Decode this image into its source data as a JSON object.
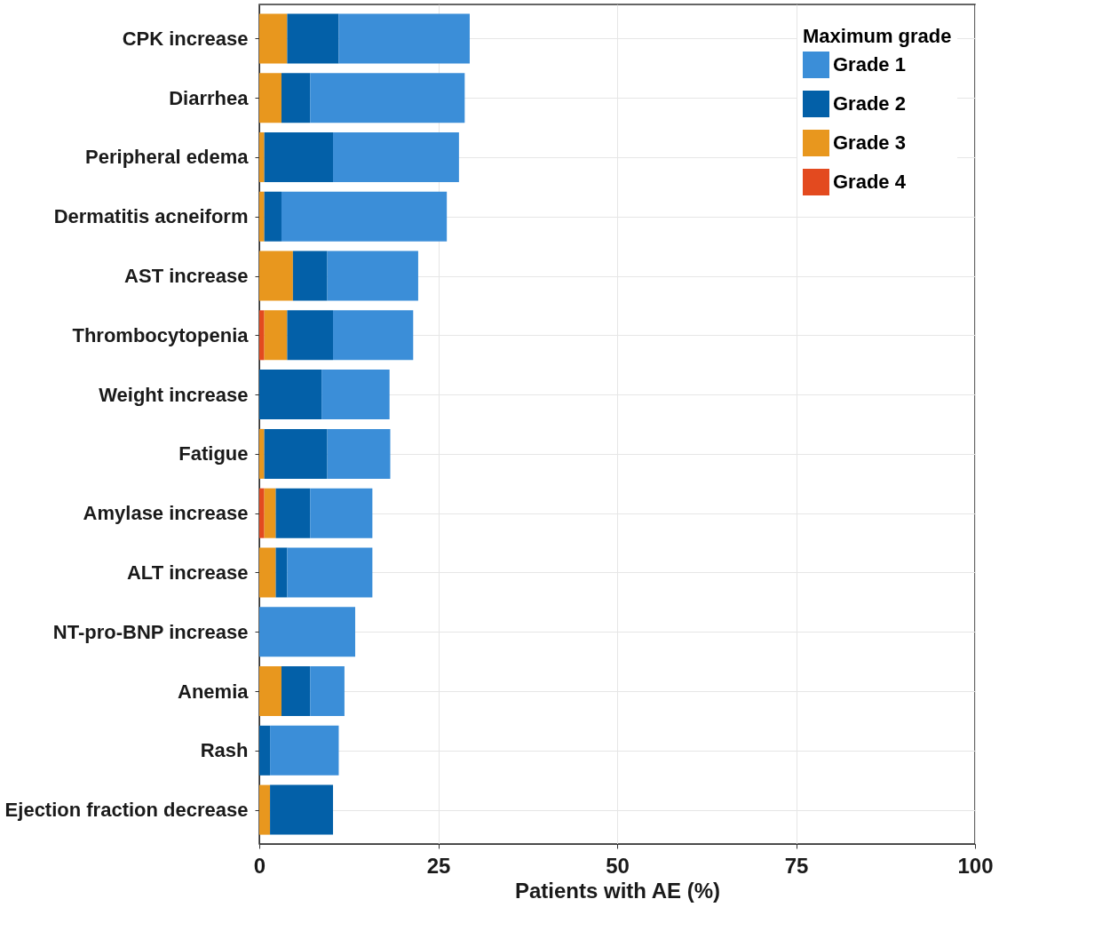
{
  "chart_data": {
    "type": "bar",
    "orientation": "horizontal",
    "stacked": true,
    "categories": [
      "CPK increase",
      "Diarrhea",
      "Peripheral edema",
      "Dermatitis acneiform",
      "AST increase",
      "Thrombocytopenia",
      "Weight increase",
      "Fatigue",
      "Amylase increase",
      "ALT increase",
      "NT-pro-BNP increase",
      "Anemia",
      "Rash",
      "Ejection fraction decrease"
    ],
    "series": [
      {
        "name": "Grade 4",
        "color": "#e34a1f",
        "values": [
          null,
          null,
          null,
          null,
          null,
          0.7,
          null,
          null,
          0.7,
          null,
          null,
          null,
          null,
          null
        ]
      },
      {
        "name": "Grade 3",
        "color": "#e8971e",
        "values": [
          3.9,
          3.1,
          0.7,
          0.7,
          4.7,
          3.2,
          null,
          0.7,
          1.6,
          2.3,
          null,
          3.1,
          null,
          1.5
        ]
      },
      {
        "name": "Grade 2",
        "color": "#0360a8",
        "values": [
          7.2,
          4.0,
          9.6,
          2.4,
          4.8,
          6.4,
          8.7,
          8.8,
          4.8,
          1.6,
          null,
          4.0,
          1.5,
          8.8
        ]
      },
      {
        "name": "Grade 1",
        "color": "#3b8ed8",
        "values": [
          18.3,
          21.6,
          17.6,
          23.1,
          12.7,
          11.2,
          9.5,
          8.8,
          8.7,
          11.9,
          13.4,
          4.8,
          9.6,
          null
        ]
      }
    ],
    "xlabel": "Patients with AE (%)",
    "legend_title": "Maximum grade",
    "legend": "top right",
    "xlim": [
      0,
      100
    ],
    "xticks": [
      0,
      25,
      50,
      75,
      100
    ],
    "grid": true
  }
}
